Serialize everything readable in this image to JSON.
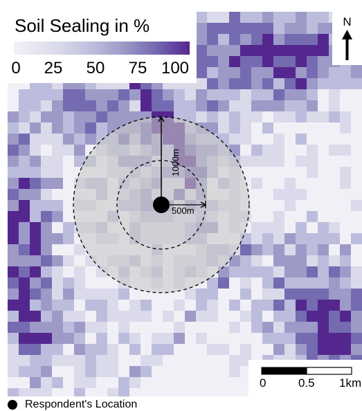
{
  "legend": {
    "title": "Soil Sealing in %",
    "ticks": [
      "0",
      "25",
      "50",
      "75",
      "100"
    ],
    "tick_values": [
      0,
      25,
      50,
      75,
      100
    ],
    "colors": [
      "#f2f0f7",
      "#dadaeb",
      "#bcbddc",
      "#9e9ac8",
      "#756bb1",
      "#54278f"
    ]
  },
  "north_arrow": {
    "label": "N",
    "icon": "north-arrow-icon"
  },
  "scale_bar": {
    "labels": [
      "0",
      "0.5",
      "1km"
    ]
  },
  "buffers": {
    "outer_label": "1000m",
    "inner_label": "500m"
  },
  "footer": {
    "label": "Respondent's Location",
    "icon": "filled-circle-icon"
  }
}
